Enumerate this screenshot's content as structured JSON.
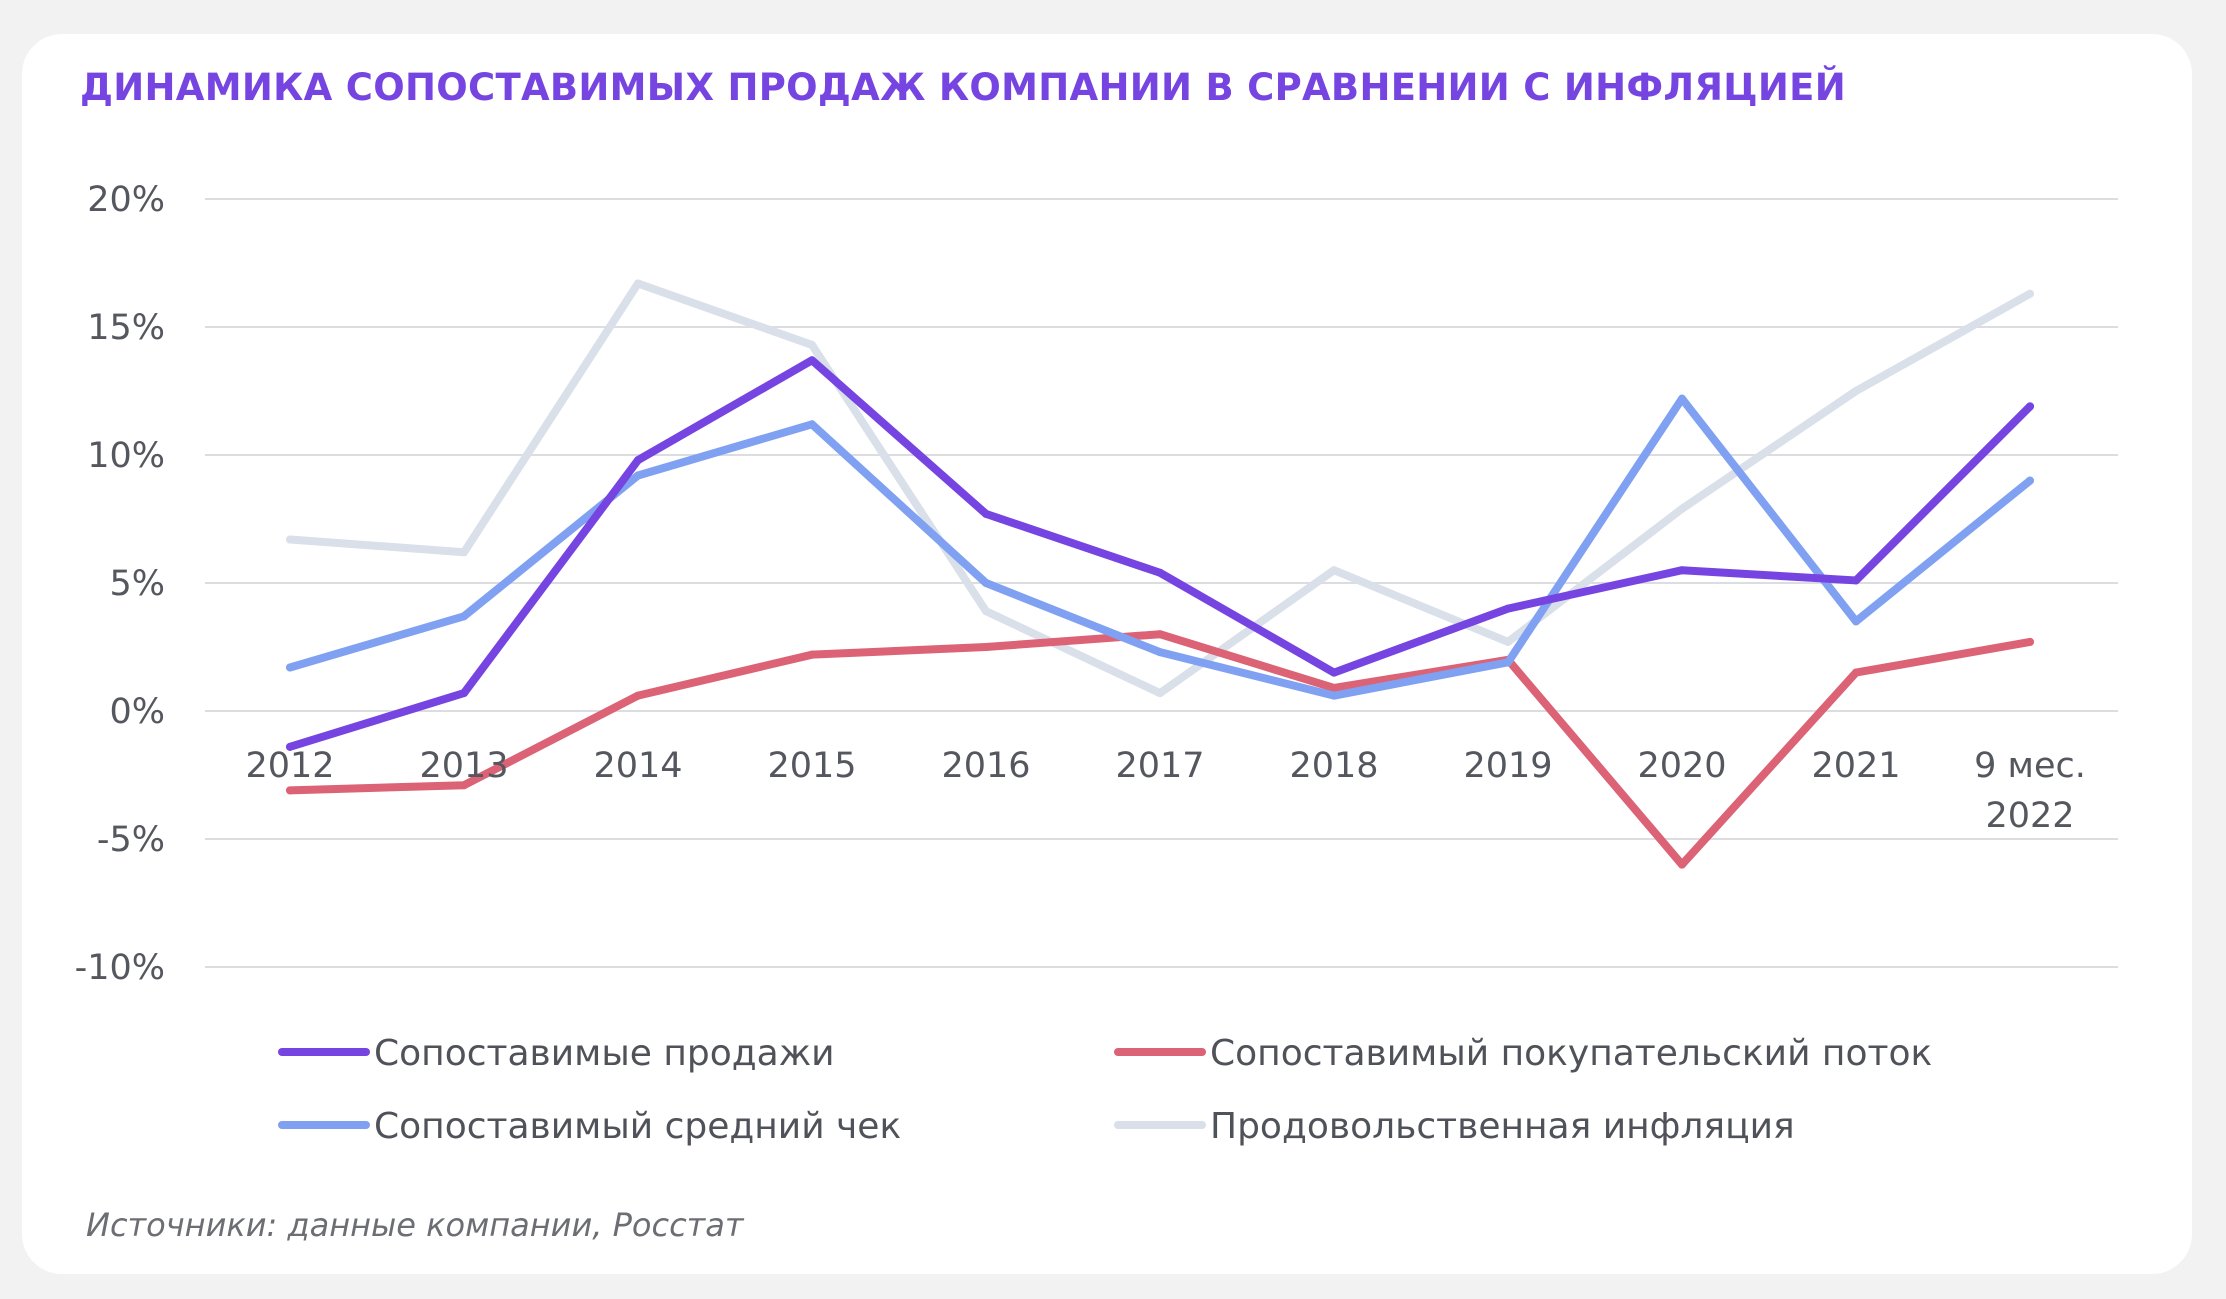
{
  "title": "ДИНАМИКА СОПОСТАВИМЫХ ПРОДАЖ КОМПАНИИ В СРАВНЕНИИ С ИНФЛЯЦИЕЙ",
  "source": "Источники: данные компании, Росстат",
  "chart_data": {
    "type": "line",
    "title": "ДИНАМИКА СОПОСТАВИМЫХ ПРОДАЖ КОМПАНИИ В СРАВНЕНИИ С ИНФЛЯЦИЕЙ",
    "xlabel": "",
    "ylabel": "",
    "categories": [
      "2012",
      "2013",
      "2014",
      "2015",
      "2016",
      "2017",
      "2018",
      "2019",
      "2020",
      "2021",
      "9 мес. 2022"
    ],
    "y_ticks": [
      "20%",
      "15%",
      "10%",
      "5%",
      "0%",
      "-5%",
      "-10%"
    ],
    "ylim": [
      -10,
      20
    ],
    "y_unit": "%",
    "grid": true,
    "legend_position": "bottom",
    "series": [
      {
        "name": "Сопоставимые продажи",
        "color": "#7645e1",
        "values": [
          -1.4,
          0.7,
          9.8,
          13.7,
          7.7,
          5.4,
          1.5,
          4.0,
          5.5,
          5.1,
          11.9
        ]
      },
      {
        "name": "Сопоставимый покупательский поток",
        "color": "#dc6275",
        "values": [
          -3.1,
          -2.9,
          0.6,
          2.2,
          2.5,
          3.0,
          0.9,
          2.0,
          -6.0,
          1.5,
          2.7
        ]
      },
      {
        "name": "Сопоставимый средний чек",
        "color": "#80a1f1",
        "values": [
          1.7,
          3.7,
          9.2,
          11.2,
          5.0,
          2.3,
          0.6,
          1.9,
          12.2,
          3.5,
          9.0
        ]
      },
      {
        "name": "Продовольственная инфляция",
        "color": "#d9e0e9",
        "values": [
          6.7,
          6.2,
          16.7,
          14.3,
          3.9,
          0.7,
          5.5,
          2.7,
          7.9,
          12.5,
          16.3
        ]
      }
    ]
  }
}
